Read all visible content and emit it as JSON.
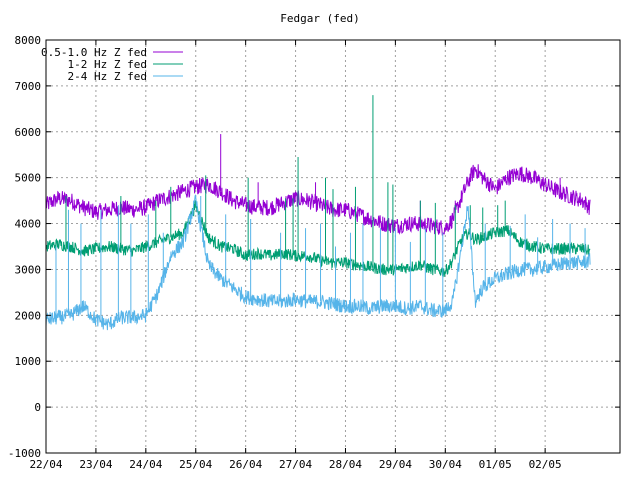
{
  "chart_data": {
    "type": "line",
    "title": "Fedgar (fed)",
    "xlabel": "",
    "ylabel": "",
    "ylim": [
      -1000,
      8000
    ],
    "yticks": [
      -1000,
      0,
      1000,
      2000,
      3000,
      4000,
      5000,
      6000,
      7000,
      8000
    ],
    "xlim": [
      0,
      11.5
    ],
    "xtick_labels": [
      "22/04",
      "23/04",
      "24/04",
      "25/04",
      "26/04",
      "27/04",
      "28/04",
      "29/04",
      "30/04",
      "01/05",
      "02/05"
    ],
    "grid": true,
    "legend_position": "top-left",
    "series": [
      {
        "name": "0.5-1.0 Hz Z fed",
        "color": "#9400d3",
        "x": [
          0,
          0.25,
          0.5,
          0.75,
          1.0,
          1.25,
          1.5,
          1.75,
          2.0,
          2.25,
          2.5,
          2.75,
          3.0,
          3.25,
          3.5,
          3.75,
          4.0,
          4.25,
          4.5,
          4.75,
          5.0,
          5.25,
          5.5,
          5.75,
          6.0,
          6.25,
          6.5,
          6.75,
          7.0,
          7.25,
          7.5,
          7.75,
          8.0,
          8.15,
          8.3,
          8.45,
          8.6,
          8.75,
          9.0,
          9.25,
          9.5,
          9.75,
          10.0,
          10.25,
          10.5,
          10.75,
          10.9
        ],
        "y": [
          4400,
          4550,
          4500,
          4350,
          4250,
          4300,
          4350,
          4300,
          4350,
          4500,
          4600,
          4700,
          4800,
          4850,
          4700,
          4500,
          4400,
          4350,
          4350,
          4450,
          4550,
          4500,
          4400,
          4300,
          4300,
          4200,
          4100,
          4000,
          3950,
          4000,
          4000,
          3950,
          3900,
          4100,
          4500,
          4900,
          5200,
          5000,
          4750,
          5000,
          5100,
          5000,
          4850,
          4700,
          4600,
          4500,
          4350
        ],
        "spikes": [
          [
            3.5,
            5950
          ],
          [
            4.25,
            4900
          ],
          [
            5.4,
            4900
          ],
          [
            7.5,
            4500
          ],
          [
            8.2,
            4500
          ],
          [
            10.3,
            5000
          ]
        ]
      },
      {
        "name": "1-2 Hz Z fed",
        "color": "#009e73",
        "x": [
          0,
          0.25,
          0.5,
          0.75,
          1.0,
          1.25,
          1.5,
          1.75,
          2.0,
          2.25,
          2.5,
          2.75,
          3.0,
          3.25,
          3.5,
          3.75,
          4.0,
          4.25,
          4.5,
          4.75,
          5.0,
          5.25,
          5.5,
          5.75,
          6.0,
          6.25,
          6.5,
          6.75,
          7.0,
          7.25,
          7.5,
          7.75,
          8.0,
          8.15,
          8.3,
          8.45,
          8.6,
          8.75,
          9.0,
          9.25,
          9.5,
          9.75,
          10.0,
          10.25,
          10.5,
          10.75,
          10.9
        ],
        "y": [
          3500,
          3550,
          3500,
          3400,
          3450,
          3500,
          3450,
          3400,
          3500,
          3600,
          3700,
          3800,
          4400,
          3700,
          3500,
          3450,
          3300,
          3350,
          3300,
          3350,
          3300,
          3300,
          3200,
          3150,
          3150,
          3100,
          3050,
          3000,
          3000,
          3050,
          3100,
          3000,
          2950,
          3200,
          3600,
          3800,
          3650,
          3700,
          3800,
          3850,
          3600,
          3500,
          3450,
          3450,
          3450,
          3450,
          3400
        ],
        "spikes": [
          [
            0.4,
            4600
          ],
          [
            1.5,
            4600
          ],
          [
            2.2,
            4500
          ],
          [
            2.5,
            4800
          ],
          [
            3.2,
            5050
          ],
          [
            4.05,
            5000
          ],
          [
            4.8,
            4550
          ],
          [
            4.95,
            4550
          ],
          [
            5.05,
            5450
          ],
          [
            5.6,
            5000
          ],
          [
            5.75,
            4750
          ],
          [
            6.2,
            4800
          ],
          [
            6.85,
            4900
          ],
          [
            6.95,
            4850
          ],
          [
            6.55,
            6800
          ],
          [
            7.5,
            4500
          ],
          [
            7.8,
            4450
          ],
          [
            8.2,
            4400
          ],
          [
            8.5,
            4400
          ],
          [
            8.75,
            4350
          ],
          [
            9.05,
            4400
          ],
          [
            9.2,
            4500
          ]
        ]
      },
      {
        "name": "2-4 Hz Z fed",
        "color": "#56b4e9",
        "x": [
          0,
          0.25,
          0.5,
          0.75,
          1.0,
          1.25,
          1.5,
          1.75,
          2.0,
          2.25,
          2.5,
          2.75,
          3.0,
          3.25,
          3.5,
          3.75,
          4.0,
          4.25,
          4.5,
          4.75,
          5.0,
          5.25,
          5.5,
          5.75,
          6.0,
          6.25,
          6.5,
          6.75,
          7.0,
          7.25,
          7.5,
          7.75,
          8.0,
          8.15,
          8.3,
          8.45,
          8.6,
          8.75,
          9.0,
          9.25,
          9.5,
          9.75,
          10.0,
          10.25,
          10.5,
          10.75,
          10.9
        ],
        "y": [
          1900,
          1950,
          2000,
          2200,
          1900,
          1800,
          1950,
          1950,
          2000,
          2500,
          3300,
          3600,
          4500,
          3100,
          2800,
          2600,
          2400,
          2350,
          2300,
          2300,
          2350,
          2300,
          2300,
          2250,
          2200,
          2200,
          2150,
          2200,
          2200,
          2150,
          2200,
          2100,
          2100,
          2300,
          3300,
          4400,
          2300,
          2600,
          2800,
          2900,
          3000,
          3000,
          3050,
          3100,
          3150,
          3150,
          3200
        ],
        "spikes": [
          [
            0.2,
            3500
          ],
          [
            0.45,
            4300
          ],
          [
            0.7,
            4000
          ],
          [
            1.1,
            4300
          ],
          [
            1.45,
            4400
          ],
          [
            1.7,
            4000
          ],
          [
            2.05,
            4200
          ],
          [
            2.35,
            3800
          ],
          [
            3.1,
            4600
          ],
          [
            3.6,
            4200
          ],
          [
            4.1,
            4100
          ],
          [
            4.7,
            3800
          ],
          [
            5.2,
            3900
          ],
          [
            5.5,
            4000
          ],
          [
            5.8,
            3500
          ],
          [
            6.1,
            3800
          ],
          [
            6.35,
            4000
          ],
          [
            6.7,
            3900
          ],
          [
            7.0,
            3900
          ],
          [
            7.3,
            3600
          ],
          [
            7.6,
            3900
          ],
          [
            7.95,
            3800
          ],
          [
            8.8,
            4000
          ],
          [
            9.3,
            3950
          ],
          [
            9.6,
            4200
          ],
          [
            9.85,
            3700
          ],
          [
            10.15,
            4100
          ],
          [
            10.5,
            4000
          ],
          [
            10.8,
            3900
          ]
        ]
      }
    ]
  }
}
